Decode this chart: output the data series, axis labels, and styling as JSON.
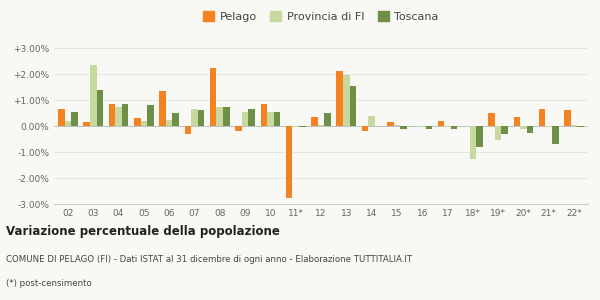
{
  "years": [
    "02",
    "03",
    "04",
    "05",
    "06",
    "07",
    "08",
    "09",
    "10",
    "11*",
    "12",
    "13",
    "14",
    "15",
    "16",
    "17",
    "18*",
    "19*",
    "20*",
    "21*",
    "22*"
  ],
  "pelago": [
    0.65,
    0.15,
    0.85,
    0.3,
    1.35,
    -0.3,
    2.25,
    -0.2,
    0.85,
    -2.75,
    0.35,
    2.1,
    -0.2,
    0.15,
    0.0,
    0.2,
    0.0,
    0.5,
    0.35,
    0.65,
    0.6
  ],
  "provincia_fi": [
    0.2,
    2.35,
    0.75,
    0.2,
    0.25,
    0.65,
    0.75,
    0.55,
    0.55,
    -0.05,
    0.05,
    1.95,
    0.4,
    0.05,
    -0.05,
    -0.05,
    -1.25,
    -0.55,
    -0.1,
    -0.05,
    0.05
  ],
  "toscana": [
    0.55,
    1.4,
    0.85,
    0.8,
    0.5,
    0.6,
    0.75,
    0.65,
    0.55,
    -0.05,
    0.5,
    1.55,
    0.0,
    -0.1,
    -0.1,
    -0.1,
    -0.8,
    -0.3,
    -0.25,
    -0.7,
    -0.05
  ],
  "color_pelago": "#f58220",
  "color_provincia": "#c8d9a0",
  "color_toscana": "#6d8f47",
  "title_bold": "Variazione percentuale della popolazione",
  "subtitle": "COMUNE DI PELAGO (FI) - Dati ISTAT al 31 dicembre di ogni anno - Elaborazione TUTTITALIA.IT",
  "footnote": "(*) post-censimento",
  "ylim": [
    -3.0,
    3.0
  ],
  "yticks": [
    -3.0,
    -2.0,
    -1.0,
    0.0,
    1.0,
    2.0,
    3.0
  ],
  "ytick_labels": [
    "-3.00%",
    "-2.00%",
    "-1.00%",
    "0.00%",
    "+1.00%",
    "+2.00%",
    "+3.00%"
  ],
  "background_color": "#f8f8f4",
  "legend_labels": [
    "Pelago",
    "Provincia di FI",
    "Toscana"
  ]
}
